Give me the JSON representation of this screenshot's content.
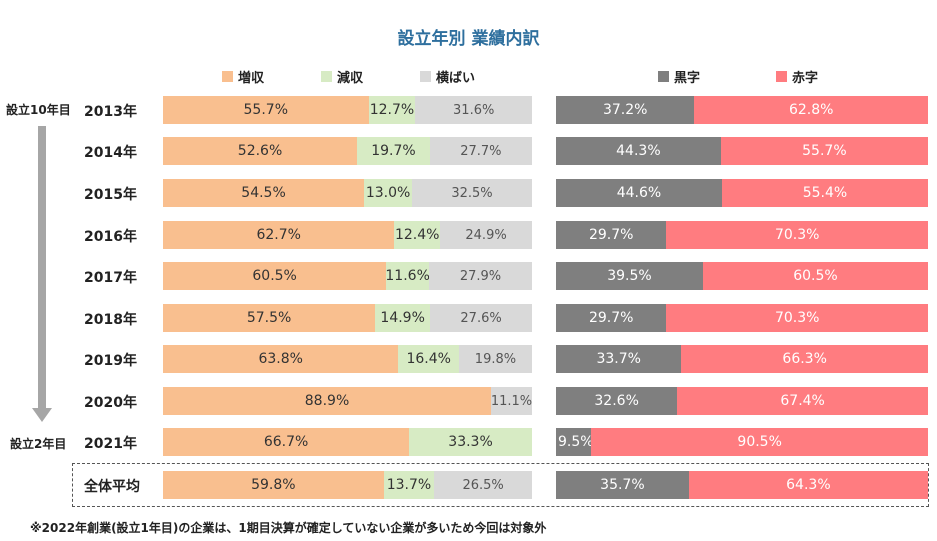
{
  "chart_data": {
    "type": "stacked-bar-horizontal",
    "title": "設立年別 業績内訳",
    "categories": [
      "2013年",
      "2014年",
      "2015年",
      "2016年",
      "2017年",
      "2018年",
      "2019年",
      "2020年",
      "2021年",
      "全体平均"
    ],
    "left_chart": {
      "series": [
        {
          "name": "増収",
          "color": "#f9bf8f",
          "values": [
            55.7,
            52.6,
            54.5,
            62.7,
            60.5,
            57.5,
            63.8,
            88.9,
            66.7,
            59.8
          ]
        },
        {
          "name": "減収",
          "color": "#d7ebc4",
          "values": [
            12.7,
            19.7,
            13.0,
            12.4,
            11.6,
            14.9,
            16.4,
            0,
            33.3,
            13.7
          ]
        },
        {
          "name": "横ばい",
          "color": "#d9d9d9",
          "values": [
            31.6,
            27.7,
            32.5,
            24.9,
            27.9,
            27.6,
            19.8,
            11.1,
            0,
            26.5
          ]
        }
      ],
      "labels": [
        [
          "55.7%",
          "12.7%",
          "31.6%"
        ],
        [
          "52.6%",
          "19.7%",
          "27.7%"
        ],
        [
          "54.5%",
          "13.0%",
          "32.5%"
        ],
        [
          "62.7%",
          "12.4%",
          "24.9%"
        ],
        [
          "60.5%",
          "11.6%",
          "27.9%"
        ],
        [
          "57.5%",
          "14.9%",
          "27.6%"
        ],
        [
          "63.8%",
          "16.4%",
          "19.8%"
        ],
        [
          "88.9%",
          "",
          "11.1%"
        ],
        [
          "66.7%",
          "33.3%",
          ""
        ],
        [
          "59.8%",
          "13.7%",
          "26.5%"
        ]
      ]
    },
    "right_chart": {
      "series": [
        {
          "name": "黒字",
          "color": "#7f7f7f",
          "values": [
            37.2,
            44.3,
            44.6,
            29.7,
            39.5,
            29.7,
            33.7,
            32.6,
            9.5,
            35.7
          ]
        },
        {
          "name": "赤字",
          "color": "#ff7c80",
          "values": [
            62.8,
            55.7,
            55.4,
            70.3,
            60.5,
            70.3,
            66.3,
            67.4,
            90.5,
            64.3
          ]
        }
      ],
      "labels": [
        [
          "37.2%",
          "62.8%"
        ],
        [
          "44.3%",
          "55.7%"
        ],
        [
          "44.6%",
          "55.4%"
        ],
        [
          "29.7%",
          "70.3%"
        ],
        [
          "39.5%",
          "60.5%"
        ],
        [
          "29.7%",
          "70.3%"
        ],
        [
          "33.7%",
          "66.3%"
        ],
        [
          "32.6%",
          "67.4%"
        ],
        [
          "9.5%",
          "90.5%"
        ],
        [
          "35.7%",
          "64.3%"
        ]
      ]
    }
  },
  "side_labels": {
    "top": "設立10年目",
    "bottom": "設立2年目"
  },
  "footnote": "※2022年創業(設立1年目)の企業は、1期目決算が確定していない企業が多いため今回は対象外"
}
